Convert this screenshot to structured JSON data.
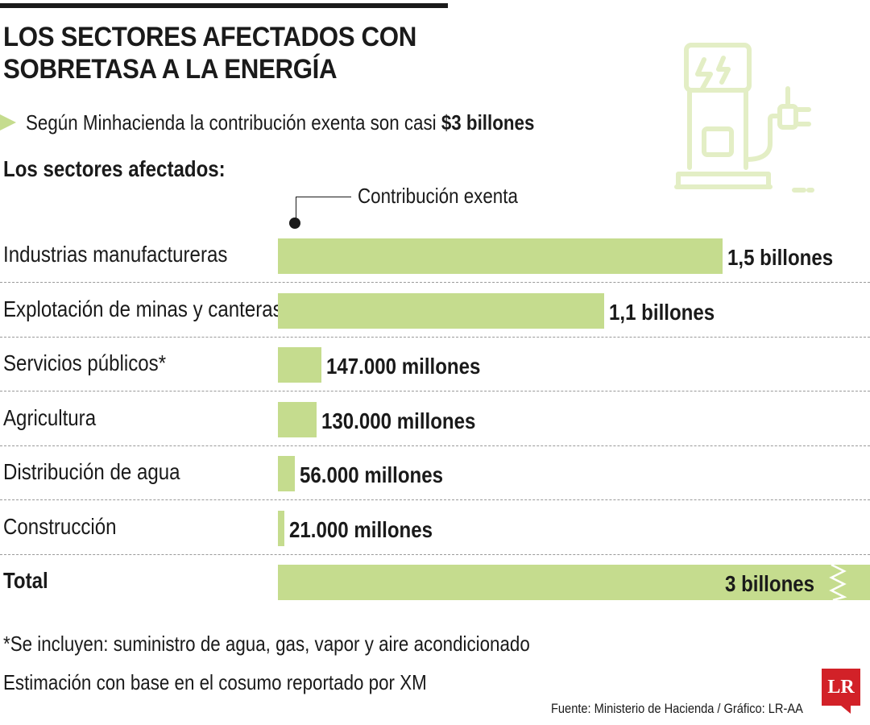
{
  "title": "LOS SECTORES AFECTADOS CON\nSOBRETASA A LA ENERGÍA",
  "subtitle": {
    "text": "Según Minhacienda la contribución exenta son casi ",
    "highlight": "$3 billones"
  },
  "section_heading": "Los sectores afectados:",
  "notes": [
    "*Se incluyen: suministro de agua, gas, vapor y aire acondicionado",
    "Estimación con base en el cosumo reportado por XM"
  ],
  "source": "Fuente: Ministerio de Hacienda / Gráfico: LR-AA",
  "logo": "LR",
  "colors": {
    "bar": "#c5dc8e",
    "logo": "#d22128",
    "illustration": "#e3eec5"
  },
  "icons": [
    "triangle-bullet-icon",
    "ev-charger-illustration-icon",
    "lr-logo-icon"
  ],
  "chart_data": {
    "type": "bar",
    "orientation": "horizontal",
    "legend": "Contribución exenta",
    "unit": "COP",
    "categories": [
      "Industrias manufactureras",
      "Explotación de minas y canteras",
      "Servicios públicos*",
      "Agricultura",
      "Distribución de agua",
      "Construcción",
      "Total"
    ],
    "values": [
      1500000000000,
      1100000000000,
      147000000000,
      130000000000,
      56000000000,
      21000000000,
      3000000000000
    ],
    "value_labels": [
      "1,5 billones",
      "1,1 billones",
      "147.000 millones",
      "130.000 millones",
      "56.000 millones",
      "21.000 millones",
      "3 billones"
    ],
    "total_bar_truncated": true
  }
}
